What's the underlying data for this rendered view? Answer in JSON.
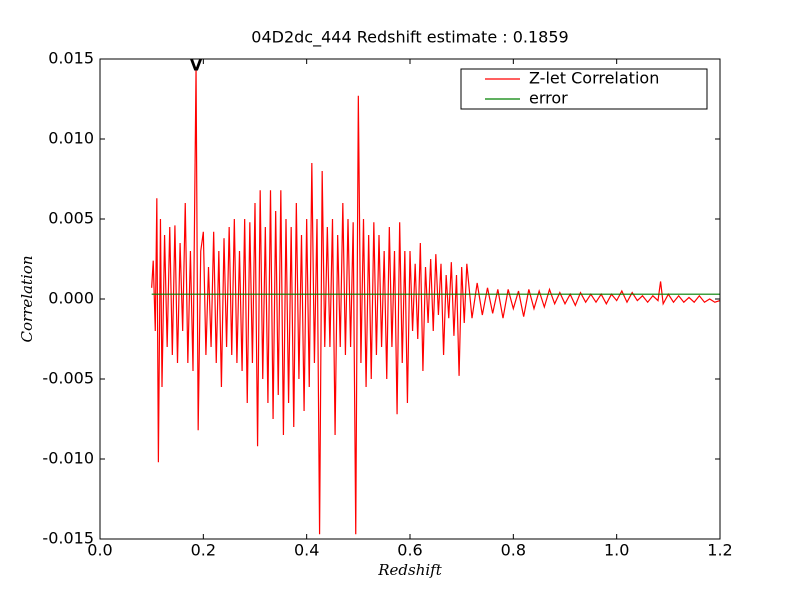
{
  "chart_data": {
    "type": "line",
    "title": "04D2dc_444 Redshift estimate : 0.1859",
    "xlabel": "Redshift",
    "ylabel": "Correlation",
    "xlim": [
      0.0,
      1.2
    ],
    "ylim": [
      -0.015,
      0.015
    ],
    "xticks": [
      {
        "value": 0.0,
        "label": "0.0"
      },
      0.2,
      0.4,
      0.6,
      0.8,
      {
        "value": 1.0,
        "label": "1.0"
      },
      1.2
    ],
    "yticks": [
      {
        "value": -0.015,
        "label": "-0.015"
      },
      {
        "value": -0.01,
        "label": "-0.010"
      },
      {
        "value": -0.005,
        "label": "-0.005"
      },
      {
        "value": 0.0,
        "label": "0.000"
      },
      0.005,
      {
        "value": 0.01,
        "label": "0.010"
      },
      0.015
    ],
    "legend": "upper right",
    "annotation": {
      "text": "V",
      "x": 0.1859
    },
    "series": [
      {
        "name": "Z-let Correlation",
        "color": "#ff0000",
        "x": [
          0.1,
          0.103,
          0.107,
          0.11,
          0.113,
          0.117,
          0.12,
          0.125,
          0.13,
          0.135,
          0.14,
          0.145,
          0.15,
          0.155,
          0.16,
          0.165,
          0.17,
          0.175,
          0.18,
          0.1859,
          0.19,
          0.195,
          0.2,
          0.205,
          0.21,
          0.215,
          0.22,
          0.225,
          0.23,
          0.235,
          0.24,
          0.245,
          0.25,
          0.255,
          0.26,
          0.265,
          0.27,
          0.275,
          0.28,
          0.285,
          0.29,
          0.295,
          0.3,
          0.305,
          0.31,
          0.315,
          0.32,
          0.325,
          0.33,
          0.335,
          0.34,
          0.345,
          0.35,
          0.355,
          0.36,
          0.365,
          0.37,
          0.375,
          0.38,
          0.385,
          0.39,
          0.395,
          0.4,
          0.405,
          0.41,
          0.415,
          0.42,
          0.425,
          0.43,
          0.435,
          0.44,
          0.445,
          0.45,
          0.455,
          0.46,
          0.465,
          0.47,
          0.475,
          0.48,
          0.485,
          0.49,
          0.495,
          0.5,
          0.505,
          0.51,
          0.515,
          0.52,
          0.525,
          0.53,
          0.535,
          0.54,
          0.545,
          0.55,
          0.555,
          0.56,
          0.565,
          0.57,
          0.575,
          0.58,
          0.585,
          0.59,
          0.595,
          0.6,
          0.605,
          0.61,
          0.615,
          0.62,
          0.625,
          0.63,
          0.635,
          0.64,
          0.645,
          0.65,
          0.655,
          0.66,
          0.665,
          0.67,
          0.675,
          0.68,
          0.685,
          0.69,
          0.695,
          0.7,
          0.705,
          0.71,
          0.72,
          0.73,
          0.74,
          0.75,
          0.76,
          0.77,
          0.78,
          0.79,
          0.8,
          0.81,
          0.82,
          0.83,
          0.84,
          0.85,
          0.86,
          0.87,
          0.88,
          0.89,
          0.9,
          0.91,
          0.92,
          0.93,
          0.94,
          0.95,
          0.96,
          0.97,
          0.98,
          0.99,
          1.0,
          1.01,
          1.02,
          1.03,
          1.04,
          1.05,
          1.06,
          1.07,
          1.08,
          1.085,
          1.09,
          1.1,
          1.11,
          1.12,
          1.13,
          1.14,
          1.15,
          1.16,
          1.17,
          1.18,
          1.19,
          1.2
        ],
        "values": [
          0.0007,
          0.0024,
          -0.002,
          0.0063,
          -0.0102,
          0.005,
          -0.0055,
          0.004,
          -0.003,
          0.0045,
          -0.0035,
          0.0046,
          -0.004,
          0.0035,
          -0.002,
          0.006,
          -0.004,
          0.003,
          -0.0045,
          0.0145,
          -0.0082,
          0.003,
          0.0042,
          -0.0035,
          0.002,
          -0.003,
          0.0042,
          -0.004,
          0.003,
          -0.0055,
          0.0038,
          -0.003,
          0.0045,
          -0.0035,
          0.005,
          -0.004,
          0.003,
          -0.0045,
          0.005,
          -0.0065,
          0.0048,
          -0.004,
          0.006,
          -0.0092,
          0.0068,
          -0.005,
          0.0045,
          -0.0065,
          0.0068,
          -0.0075,
          0.0055,
          -0.006,
          0.0068,
          -0.0085,
          0.005,
          -0.0065,
          0.0045,
          -0.008,
          0.006,
          -0.005,
          0.004,
          -0.007,
          0.005,
          -0.0055,
          0.0085,
          -0.004,
          0.005,
          -0.0147,
          0.008,
          -0.003,
          0.0045,
          -0.003,
          0.005,
          -0.0085,
          0.004,
          -0.003,
          0.006,
          -0.0035,
          0.005,
          -0.003,
          0.0048,
          -0.0147,
          0.0127,
          -0.004,
          0.005,
          -0.0055,
          0.004,
          -0.005,
          0.0048,
          -0.0035,
          0.004,
          -0.003,
          0.003,
          -0.005,
          0.0045,
          -0.003,
          0.003,
          -0.0072,
          0.0048,
          -0.004,
          0.003,
          -0.0065,
          0.003,
          -0.002,
          0.0022,
          -0.0025,
          0.0035,
          -0.0045,
          0.002,
          -0.0015,
          0.0025,
          -0.002,
          0.0028,
          -0.001,
          0.0022,
          -0.0035,
          0.0015,
          -0.0012,
          0.0023,
          -0.0023,
          0.0015,
          -0.0048,
          0.002,
          -0.0015,
          0.0022,
          -0.0012,
          0.001,
          -0.001,
          0.0007,
          -0.0009,
          0.0006,
          -0.0012,
          0.0006,
          -0.0006,
          0.0005,
          -0.0011,
          0.0006,
          -0.0006,
          0.0005,
          -0.0005,
          0.0006,
          -0.0003,
          0.0004,
          -0.0003,
          0.0003,
          -0.0004,
          0.0004,
          -0.0002,
          0.0003,
          -0.0002,
          0.0003,
          -0.0003,
          0.0003,
          -0.0001,
          0.0005,
          -0.0002,
          0.0004,
          -0.0001,
          0.0002,
          -0.0002,
          0.0002,
          -0.0001,
          0.0011,
          -0.0003,
          0.0003,
          -0.0002,
          0.0002,
          -0.0002,
          0.0001,
          -0.0002,
          0.0002,
          -0.0002,
          0,
          -0.0002,
          -0.0001
        ]
      },
      {
        "name": "error",
        "color": "#008000",
        "x": [
          0.1,
          1.2
        ],
        "values": [
          0.0003,
          0.0003
        ]
      }
    ]
  }
}
